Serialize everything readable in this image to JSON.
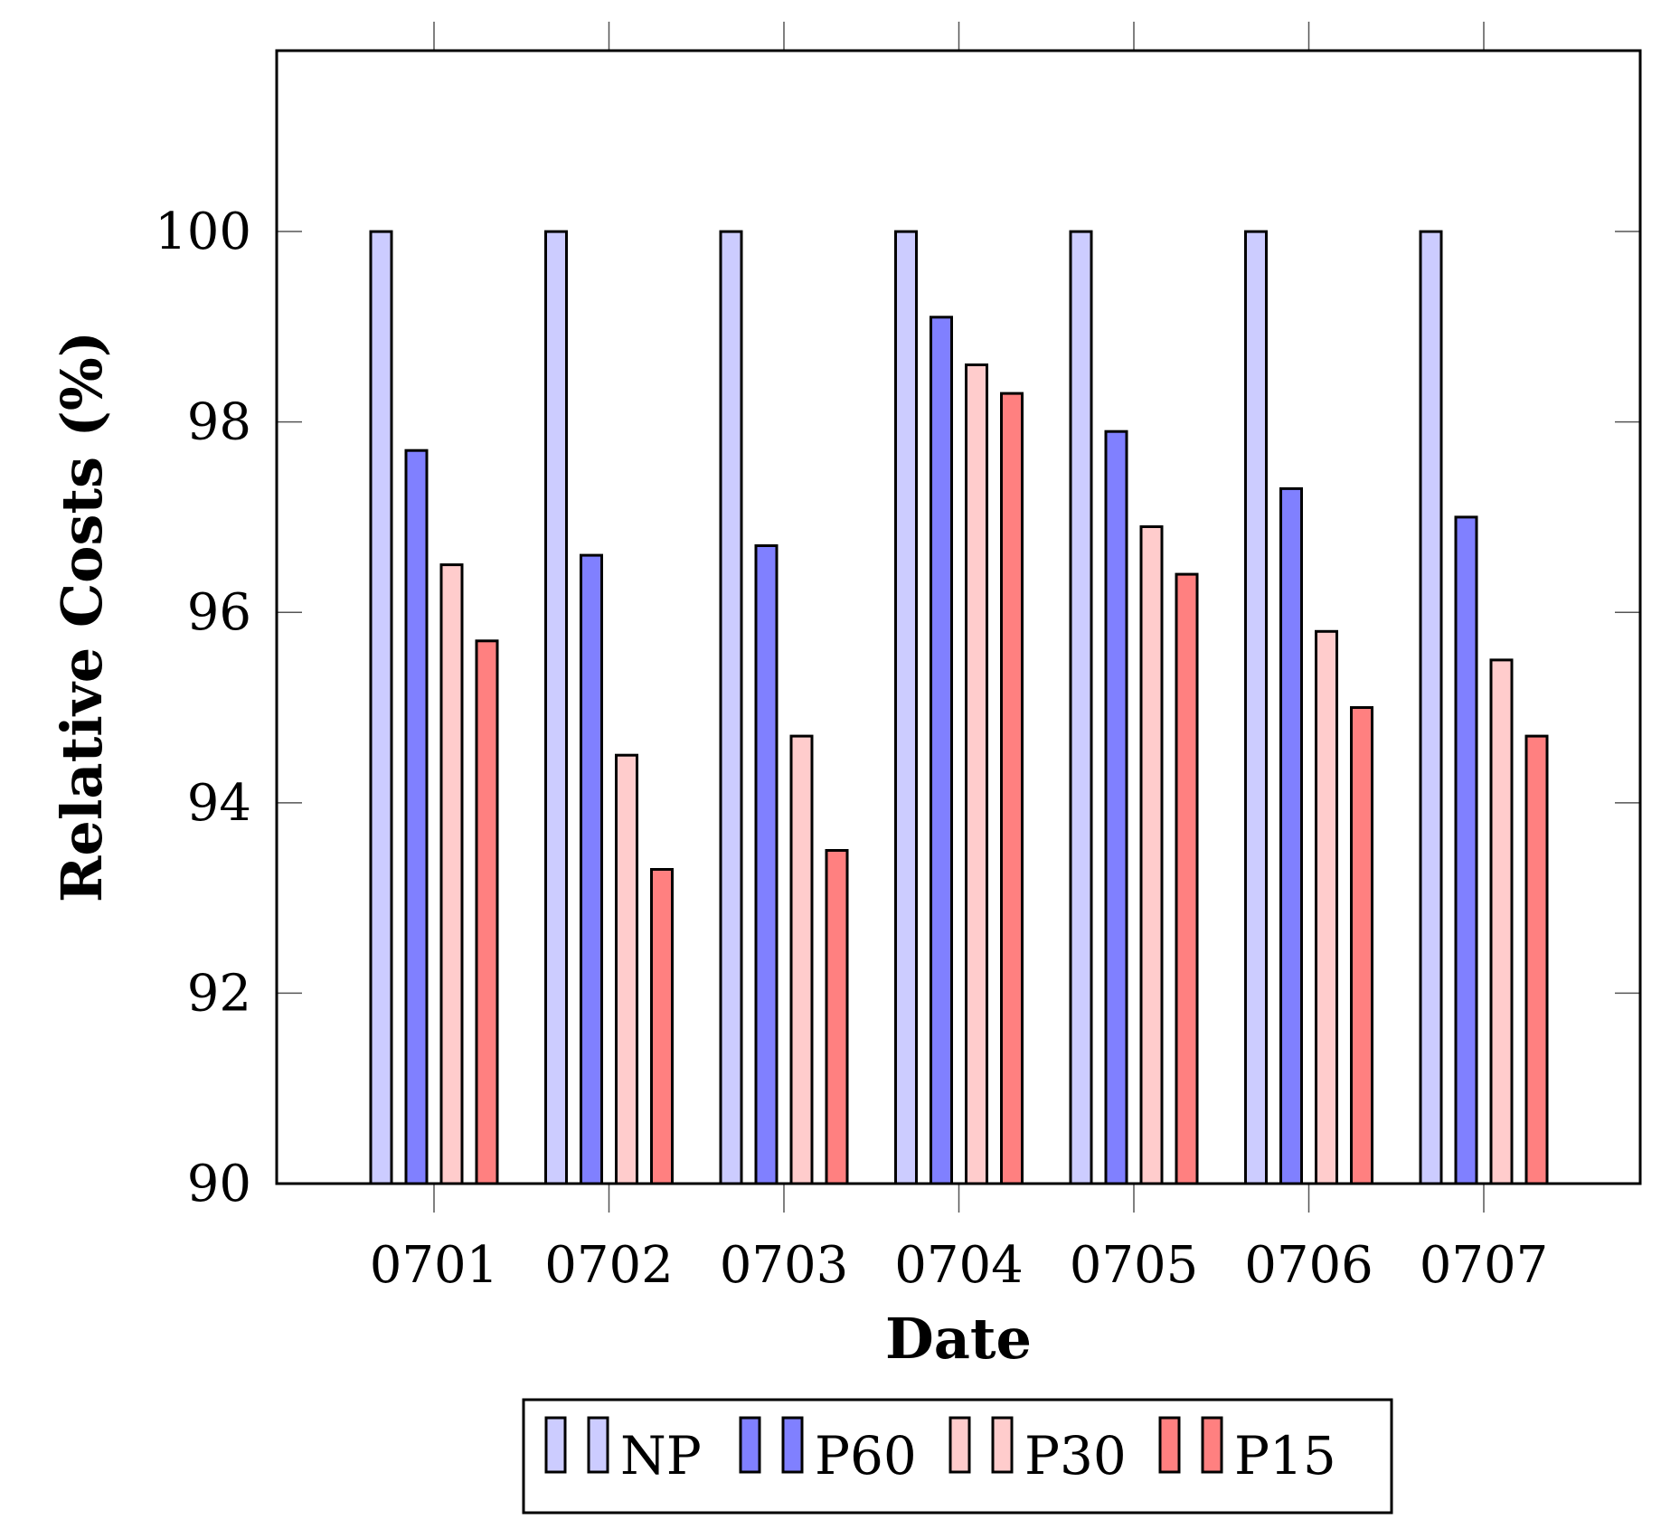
{
  "chart_data": {
    "type": "bar",
    "xlabel": "Date",
    "ylabel": "Relative Costs (%)",
    "categories": [
      "0701",
      "0702",
      "0703",
      "0704",
      "0705",
      "0706",
      "0707"
    ],
    "ylim": [
      90,
      101.9
    ],
    "yticks": [
      90,
      92,
      94,
      96,
      98,
      100
    ],
    "grid": false,
    "legend_position": "bottom-center",
    "series": [
      {
        "name": "NP",
        "color": "#ccccff",
        "values": [
          100,
          100,
          100,
          100,
          100,
          100,
          100
        ]
      },
      {
        "name": "P60",
        "color": "#8080ff",
        "values": [
          97.7,
          96.6,
          96.7,
          99.1,
          97.9,
          97.3,
          97.0
        ]
      },
      {
        "name": "P30",
        "color": "#ffcccc",
        "values": [
          96.5,
          94.5,
          94.7,
          98.6,
          96.9,
          95.8,
          95.5
        ]
      },
      {
        "name": "P15",
        "color": "#ff8080",
        "values": [
          95.7,
          93.3,
          93.5,
          98.3,
          96.4,
          95.0,
          94.7
        ]
      }
    ]
  }
}
